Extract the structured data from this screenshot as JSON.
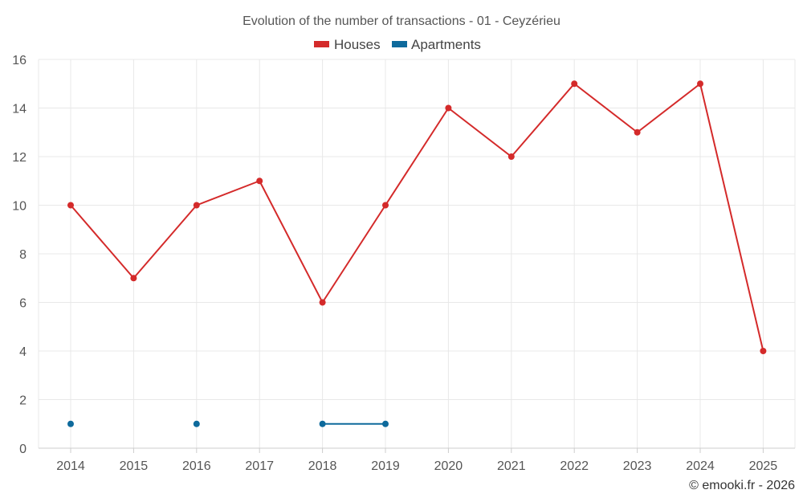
{
  "chart_data": {
    "type": "line",
    "title": "Evolution of the number of transactions - 01 - Ceyzérieu",
    "x": [
      "2014",
      "2015",
      "2016",
      "2017",
      "2018",
      "2019",
      "2020",
      "2021",
      "2022",
      "2023",
      "2024",
      "2025"
    ],
    "ylim": [
      0,
      16
    ],
    "yticks": [
      0,
      2,
      4,
      6,
      8,
      10,
      12,
      14,
      16
    ],
    "grid": true,
    "legend_position": "top-center",
    "series": [
      {
        "name": "Houses",
        "color": "#d42a2a",
        "values": [
          10,
          7,
          10,
          11,
          6,
          10,
          14,
          12,
          15,
          13,
          15,
          4
        ]
      },
      {
        "name": "Apartments",
        "color": "#0e6a9c",
        "values": [
          1,
          null,
          1,
          null,
          1,
          1,
          null,
          null,
          null,
          null,
          null,
          null
        ]
      }
    ]
  },
  "credit": "© emooki.fr - 2026"
}
